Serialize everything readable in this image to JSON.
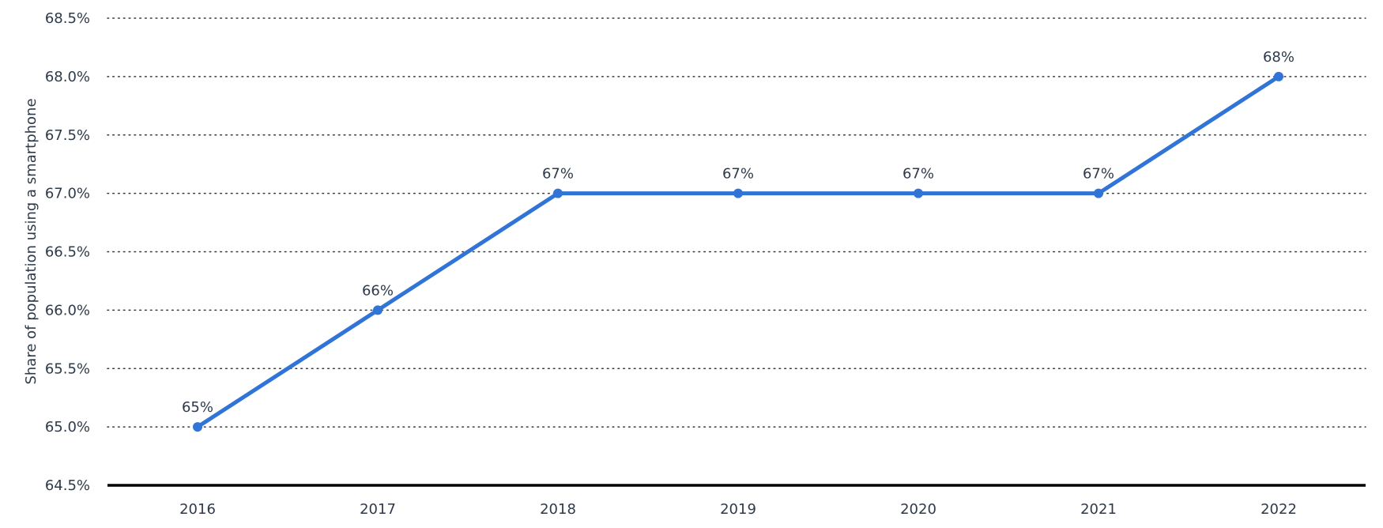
{
  "colors": {
    "series": "#2f74d6",
    "gridline": "#3a3a3a",
    "baseline": "#000000",
    "text": "#2e3a4a"
  },
  "chart_data": {
    "type": "line",
    "title": "",
    "xlabel": "",
    "ylabel": "Share of population using a smartphone",
    "categories": [
      "2016",
      "2017",
      "2018",
      "2019",
      "2020",
      "2021",
      "2022"
    ],
    "series": [
      {
        "values": [
          65,
          66,
          67,
          67,
          67,
          67,
          68
        ],
        "data_labels": [
          "65%",
          "66%",
          "67%",
          "67%",
          "67%",
          "67%",
          "68%"
        ]
      }
    ],
    "ylim": [
      64.5,
      68.5
    ],
    "yticks": [
      64.5,
      65.0,
      65.5,
      66.0,
      66.5,
      67.0,
      67.5,
      68.0,
      68.5
    ],
    "ytick_labels": [
      "64.5%",
      "65.0%",
      "65.5%",
      "66.0%",
      "66.5%",
      "67.0%",
      "67.5%",
      "68.0%",
      "68.5%"
    ],
    "grid": true,
    "grid_style": "dotted",
    "legend": "none"
  }
}
